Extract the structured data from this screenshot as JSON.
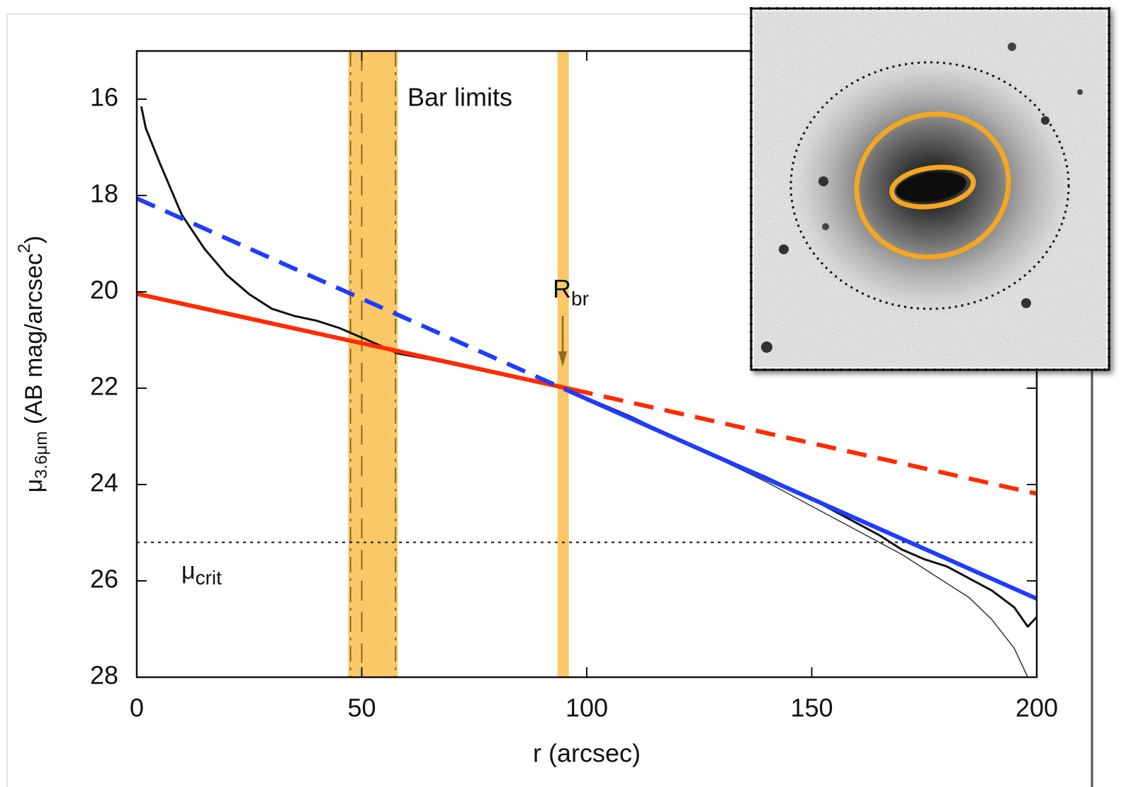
{
  "chart_data": {
    "type": "line",
    "xlabel": "r (arcsec)",
    "ylabel": [
      "μ",
      "3.6μm",
      " (AB mag/arcsec",
      "2",
      ")"
    ],
    "xlim": [
      0,
      200
    ],
    "ylim": [
      28,
      15
    ],
    "xticks": [
      0,
      50,
      100,
      150,
      200
    ],
    "yticks": [
      16,
      18,
      20,
      22,
      24,
      26,
      28
    ],
    "shaded_regions": [
      {
        "x": [
          47,
          58
        ],
        "color": "#fbc868"
      },
      {
        "x": [
          93.5,
          96
        ],
        "color": "#fbc868"
      }
    ],
    "vlines": [
      {
        "x": 47.5,
        "style": "dashdot",
        "color": "#8a6a20"
      },
      {
        "x": 50,
        "style": "dashed",
        "color": "#8a6a20"
      },
      {
        "x": 57.5,
        "style": "dashdot",
        "color": "#8a6a20"
      }
    ],
    "hlines": [
      {
        "y": 25.2,
        "style": "dotted",
        "color": "#111111"
      }
    ],
    "series": [
      {
        "color": "#111111",
        "width": 3,
        "style": "solid",
        "x": [
          1,
          2,
          5,
          10,
          15,
          20,
          25,
          30,
          35,
          40,
          45,
          50,
          55,
          58,
          65,
          75,
          85,
          95,
          100,
          110,
          120,
          130,
          140,
          150,
          160,
          165,
          170,
          175,
          180,
          185,
          190,
          195,
          198,
          200
        ],
        "values": [
          16.15,
          16.6,
          17.3,
          18.4,
          19.1,
          19.65,
          20.05,
          20.35,
          20.5,
          20.6,
          20.75,
          20.95,
          21.15,
          21.28,
          21.4,
          21.6,
          21.8,
          22.0,
          22.2,
          22.6,
          23.05,
          23.45,
          23.85,
          24.3,
          24.8,
          25.05,
          25.35,
          25.55,
          25.7,
          25.95,
          26.2,
          26.55,
          26.95,
          26.75
        ]
      },
      {
        "color": "#333333",
        "width": 1.5,
        "style": "solid",
        "x": [
          120,
          130,
          140,
          150,
          160,
          170,
          175,
          180,
          185,
          190,
          195,
          198
        ],
        "values": [
          23.05,
          23.5,
          23.95,
          24.45,
          24.95,
          25.45,
          25.75,
          26.05,
          26.35,
          26.8,
          27.4,
          28.0
        ]
      },
      {
        "color": "#ff2a00",
        "width": 6,
        "style": "solid",
        "x": [
          0,
          97
        ],
        "values": [
          20.04,
          22.03
        ]
      },
      {
        "color": "#ff2a00",
        "width": 6,
        "style": "dashed",
        "x": [
          97,
          200
        ],
        "values": [
          22.03,
          24.19
        ]
      },
      {
        "color": "#1f3cff",
        "width": 6,
        "style": "dashed",
        "x": [
          0,
          97
        ],
        "values": [
          18.06,
          22.1
        ]
      },
      {
        "color": "#1f3cff",
        "width": 6,
        "style": "solid",
        "x": [
          97,
          200
        ],
        "values": [
          22.1,
          26.37
        ]
      }
    ],
    "annotations": [
      "Bar limits",
      [
        "R",
        "br"
      ],
      [
        "μ",
        "crit"
      ]
    ]
  }
}
